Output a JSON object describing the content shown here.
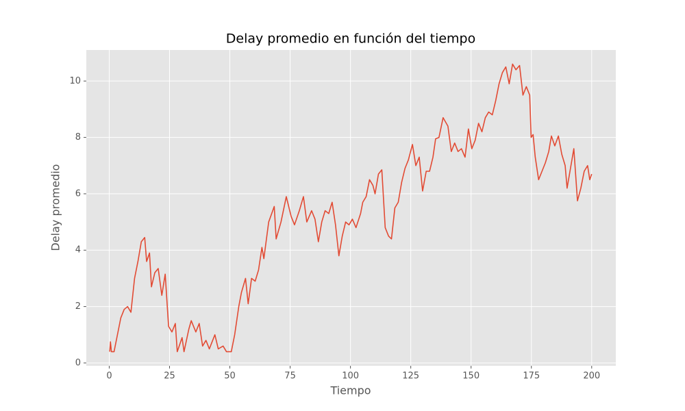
{
  "chart_data": {
    "type": "line",
    "title": "Delay promedio en función del tiempo",
    "x_label": "Tiempo",
    "y_label": "Delay promedio",
    "xlim": [
      -9.5,
      210
    ],
    "ylim": [
      -0.1,
      11.1
    ],
    "xticks": [
      0,
      25,
      50,
      75,
      100,
      125,
      150,
      175,
      200
    ],
    "yticks": [
      0,
      2,
      4,
      6,
      8,
      10
    ],
    "grid": true,
    "x": [
      0.2,
      0.5,
      0.9,
      2,
      3.4,
      4.8,
      6.2,
      7.6,
      9,
      9.5,
      10.5,
      11.9,
      13.3,
      14.7,
      15.5,
      16.7,
      17.5,
      18.9,
      20.3,
      21.8,
      23.2,
      24.6,
      26,
      27.4,
      28.2,
      30.2,
      31,
      33,
      34,
      35.9,
      37.3,
      38.7,
      40.1,
      41.5,
      43.8,
      45.2,
      47.2,
      48.6,
      50.6,
      52,
      53.7,
      54.8,
      56.5,
      57.6,
      59,
      60.5,
      61.9,
      63.3,
      64.1,
      66.1,
      68.4,
      69.2,
      71.2,
      73.4,
      75.4,
      76.8,
      78.8,
      80.5,
      81.9,
      83.9,
      85.3,
      86.7,
      88.1,
      89.5,
      91,
      92.4,
      93.8,
      95.2,
      96.6,
      98,
      99.4,
      100.8,
      102.3,
      104.2,
      105.1,
      106.5,
      107.9,
      109.3,
      110.2,
      111.6,
      113,
      114.4,
      115.8,
      117,
      118.4,
      119.8,
      121.2,
      122.6,
      124,
      125.7,
      127.1,
      128.5,
      129.9,
      131.4,
      132.8,
      134.2,
      135.3,
      136.7,
      138.4,
      140.4,
      141.8,
      143.2,
      144.6,
      146,
      147.5,
      148.9,
      150.3,
      151.7,
      153.1,
      154.5,
      155.9,
      157.3,
      158.8,
      160.2,
      161.6,
      163,
      164.4,
      165.8,
      167.2,
      168.6,
      170.1,
      171.5,
      172.9,
      174.3,
      174.9,
      175.7,
      176.6,
      178,
      179.4,
      180.8,
      182.2,
      183.3,
      184.7,
      186.2,
      187.6,
      189,
      189.8,
      191.2,
      192.6,
      194.1,
      195.5,
      196.9,
      198.3,
      199.2,
      200
    ],
    "series": [
      {
        "name": "Delay promedio",
        "color": "#e24a33",
        "values": [
          0.4,
          0.75,
          0.4,
          0.4,
          1.0,
          1.6,
          1.9,
          2.0,
          1.8,
          2.2,
          3.0,
          3.6,
          4.3,
          4.45,
          3.6,
          3.9,
          2.7,
          3.2,
          3.35,
          2.4,
          3.15,
          1.3,
          1.1,
          1.4,
          0.4,
          0.9,
          0.4,
          1.2,
          1.5,
          1.1,
          1.4,
          0.6,
          0.8,
          0.5,
          1.0,
          0.5,
          0.6,
          0.4,
          0.4,
          1.0,
          2.0,
          2.5,
          3.0,
          2.1,
          3.0,
          2.9,
          3.3,
          4.1,
          3.7,
          5.0,
          5.55,
          4.4,
          5.0,
          5.9,
          5.2,
          4.9,
          5.4,
          5.9,
          5.0,
          5.4,
          5.1,
          4.3,
          5.0,
          5.4,
          5.3,
          5.7,
          4.9,
          3.8,
          4.5,
          5.0,
          4.9,
          5.1,
          4.8,
          5.3,
          5.7,
          5.9,
          6.5,
          6.3,
          6.0,
          6.7,
          6.85,
          4.8,
          4.5,
          4.4,
          5.5,
          5.7,
          6.4,
          6.9,
          7.2,
          7.75,
          7.0,
          7.3,
          6.1,
          6.8,
          6.8,
          7.3,
          7.95,
          8.0,
          8.7,
          8.4,
          7.5,
          7.8,
          7.5,
          7.6,
          7.3,
          8.3,
          7.6,
          7.9,
          8.5,
          8.2,
          8.7,
          8.9,
          8.8,
          9.3,
          9.9,
          10.3,
          10.5,
          9.9,
          10.6,
          10.4,
          10.55,
          9.5,
          9.8,
          9.5,
          8.0,
          8.1,
          7.3,
          6.5,
          6.8,
          7.1,
          7.5,
          8.05,
          7.7,
          8.05,
          7.4,
          7.0,
          6.2,
          6.9,
          7.6,
          5.75,
          6.2,
          6.8,
          7.0,
          6.5,
          6.7
        ]
      }
    ]
  }
}
